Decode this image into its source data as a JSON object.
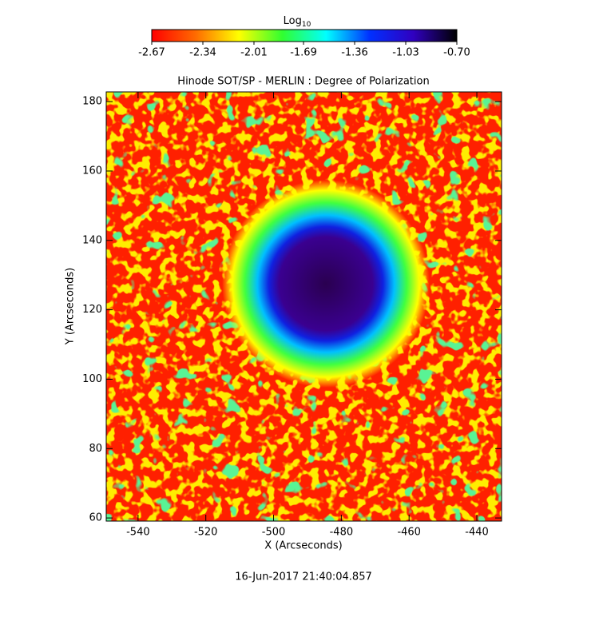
{
  "chart_data": {
    "type": "image",
    "title": "Hinode SOT/SP - MERLIN : Degree of Polarization",
    "x_label": "X (Arcseconds)",
    "y_label": "Y (Arcseconds)",
    "xlim": [
      -549.4,
      -432.7
    ],
    "xticks": [
      -540,
      -520,
      -500,
      -480,
      -460,
      -440
    ],
    "ylim": [
      59.1,
      182.8
    ],
    "yticks": [
      60,
      80,
      100,
      120,
      140,
      160,
      180
    ],
    "colorbar": {
      "label": "Log",
      "label_subscript": "10",
      "clim": [
        -2.67,
        -0.7
      ],
      "ticks": [
        -2.67,
        -2.34,
        -2.01,
        -1.69,
        -1.36,
        -1.03,
        {
          "value": -0.7,
          "label": "-0.70"
        }
      ],
      "colormap": [
        "#ff0000",
        "#ff6a00",
        "#ffff00",
        "#30ff30",
        "#00ffff",
        "#0030ff",
        "#3000c0",
        "#000000"
      ]
    },
    "timestamp": "16-Jun-2017 21:40:04.857"
  }
}
